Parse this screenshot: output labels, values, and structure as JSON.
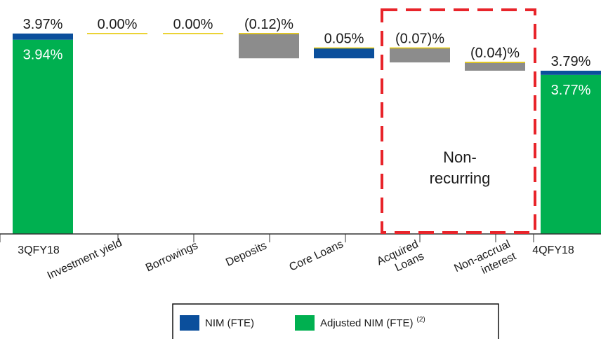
{
  "chart_data": {
    "type": "bar",
    "subtype": "waterfall",
    "categories": [
      "3QFY18",
      "Investment yield",
      "Borrowings",
      "Deposits",
      "Core Loans",
      "Acquired Loans",
      "Non-accrual interest",
      "4QFY18"
    ],
    "category_lines": [
      [
        "3QFY18"
      ],
      [
        "Investment yield"
      ],
      [
        "Borrowings"
      ],
      [
        "Deposits"
      ],
      [
        "Core Loans"
      ],
      [
        "Acquired",
        "Loans"
      ],
      [
        "Non-accrual",
        "interest"
      ],
      [
        "4QFY18"
      ]
    ],
    "steps": [
      {
        "category": "3QFY18",
        "kind": "total",
        "nim": 3.97,
        "adjusted": 3.94,
        "label": "3.97%",
        "inner_label": "3.94%"
      },
      {
        "category": "Investment yield",
        "kind": "delta",
        "value": 0.0,
        "label": "0.00%"
      },
      {
        "category": "Borrowings",
        "kind": "delta",
        "value": 0.0,
        "label": "0.00%"
      },
      {
        "category": "Deposits",
        "kind": "delta",
        "value": -0.12,
        "label": "(0.12)%"
      },
      {
        "category": "Core Loans",
        "kind": "delta",
        "value": 0.05,
        "label": "0.05%"
      },
      {
        "category": "Acquired Loans",
        "kind": "delta",
        "value": -0.07,
        "label": "(0.07)%"
      },
      {
        "category": "Non-accrual interest",
        "kind": "delta",
        "value": -0.04,
        "label": "(0.04)%"
      },
      {
        "category": "4QFY18",
        "kind": "total",
        "nim": 3.79,
        "adjusted": 3.77,
        "label": "3.79%",
        "inner_label": "3.77%"
      }
    ],
    "annotation": {
      "lines": [
        "Non-",
        "recurring"
      ],
      "spans": [
        "Acquired Loans",
        "Non-accrual interest"
      ]
    },
    "legend": {
      "position": "bottom",
      "items": [
        {
          "label": "NIM (FTE)",
          "color": "#0b4f9c"
        },
        {
          "label": "Adjusted NIM (FTE)",
          "superscript": "(2)",
          "color": "#00b050"
        }
      ]
    },
    "colors": {
      "nim": "#0b4f9c",
      "adjusted": "#00b050",
      "negative": "#8c8c8c",
      "positive": "#0b4f9c",
      "connector": "#e6c700",
      "annotation_border": "#e8242a"
    },
    "grid": false,
    "ylim": [
      3.0,
      4.0
    ]
  }
}
